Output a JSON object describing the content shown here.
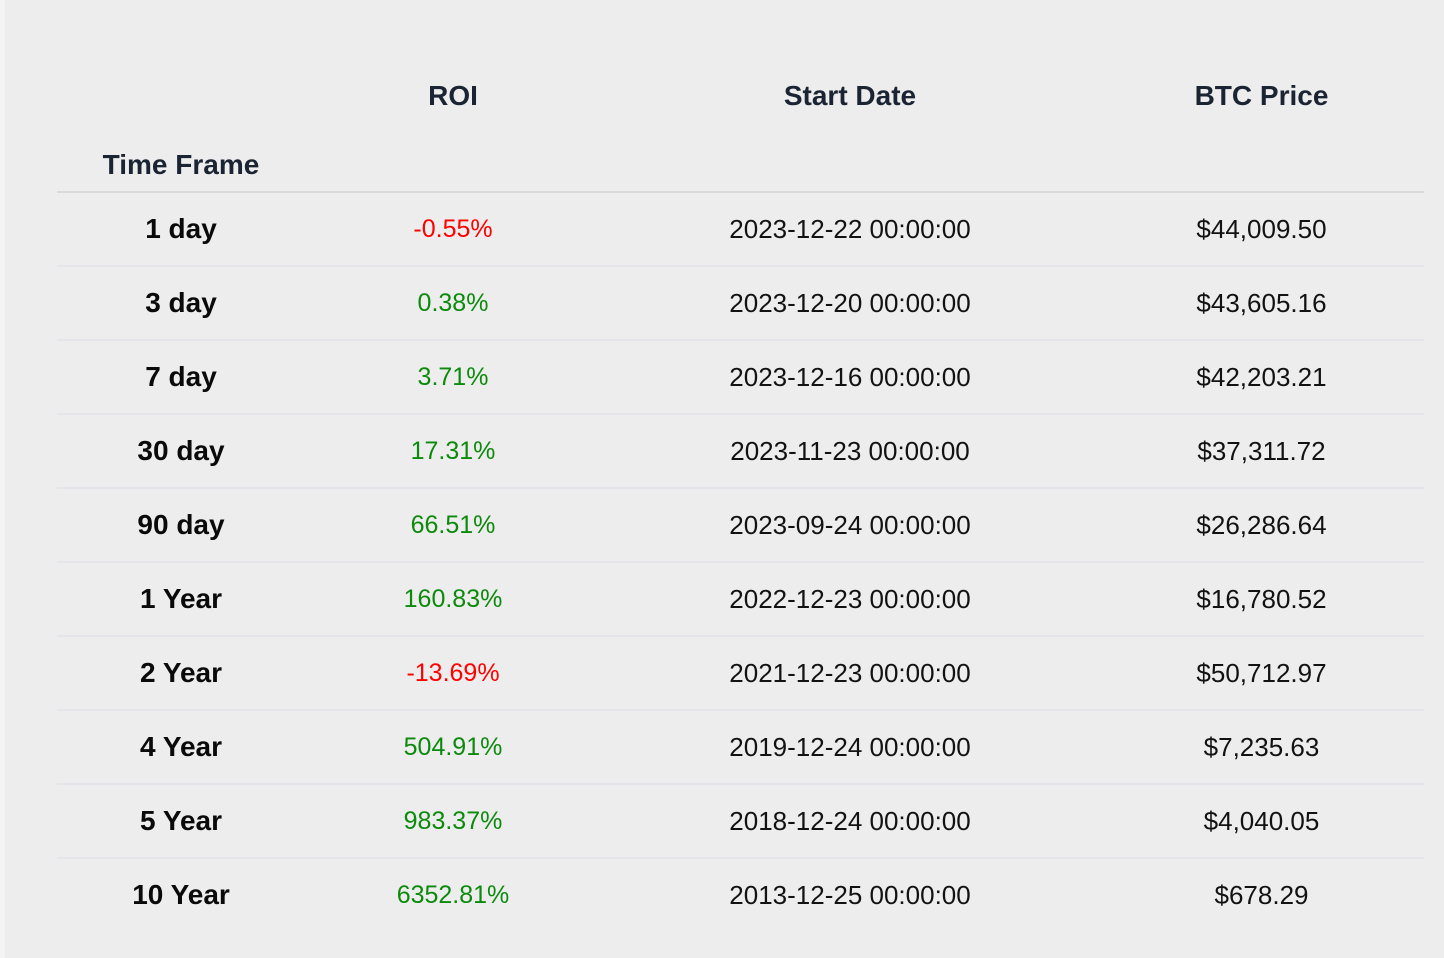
{
  "chart_data": {
    "type": "table",
    "columns": [
      {
        "label": "Time Frame"
      },
      {
        "label": "ROI"
      },
      {
        "label": "Start Date"
      },
      {
        "label": "BTC Price"
      }
    ],
    "rows": [
      {
        "timeframe": "1 day",
        "roi": "-0.55%",
        "start_date": "2023-12-22 00:00:00",
        "btc_price": "$44,009.50"
      },
      {
        "timeframe": "3 day",
        "roi": "0.38%",
        "start_date": "2023-12-20 00:00:00",
        "btc_price": "$43,605.16"
      },
      {
        "timeframe": "7 day",
        "roi": "3.71%",
        "start_date": "2023-12-16 00:00:00",
        "btc_price": "$42,203.21"
      },
      {
        "timeframe": "30 day",
        "roi": "17.31%",
        "start_date": "2023-11-23 00:00:00",
        "btc_price": "$37,311.72"
      },
      {
        "timeframe": "90 day",
        "roi": "66.51%",
        "start_date": "2023-09-24 00:00:00",
        "btc_price": "$26,286.64"
      },
      {
        "timeframe": "1 Year",
        "roi": "160.83%",
        "start_date": "2022-12-23 00:00:00",
        "btc_price": "$16,780.52"
      },
      {
        "timeframe": "2 Year",
        "roi": "-13.69%",
        "start_date": "2021-12-23 00:00:00",
        "btc_price": "$50,712.97"
      },
      {
        "timeframe": "4 Year",
        "roi": "504.91%",
        "start_date": "2019-12-24 00:00:00",
        "btc_price": "$7,235.63"
      },
      {
        "timeframe": "5 Year",
        "roi": "983.37%",
        "start_date": "2018-12-24 00:00:00",
        "btc_price": "$4,040.05"
      },
      {
        "timeframe": "10 Year",
        "roi": "6352.81%",
        "start_date": "2013-12-25 00:00:00",
        "btc_price": "$678.29"
      }
    ]
  },
  "colors": {
    "positive": "#0c8a0c",
    "negative": "#ff0000",
    "header_text": "#1b2433",
    "body_text": "#121212",
    "background": "#ededed",
    "header_border": "#d8dade",
    "row_border": "#e4e5ea"
  }
}
